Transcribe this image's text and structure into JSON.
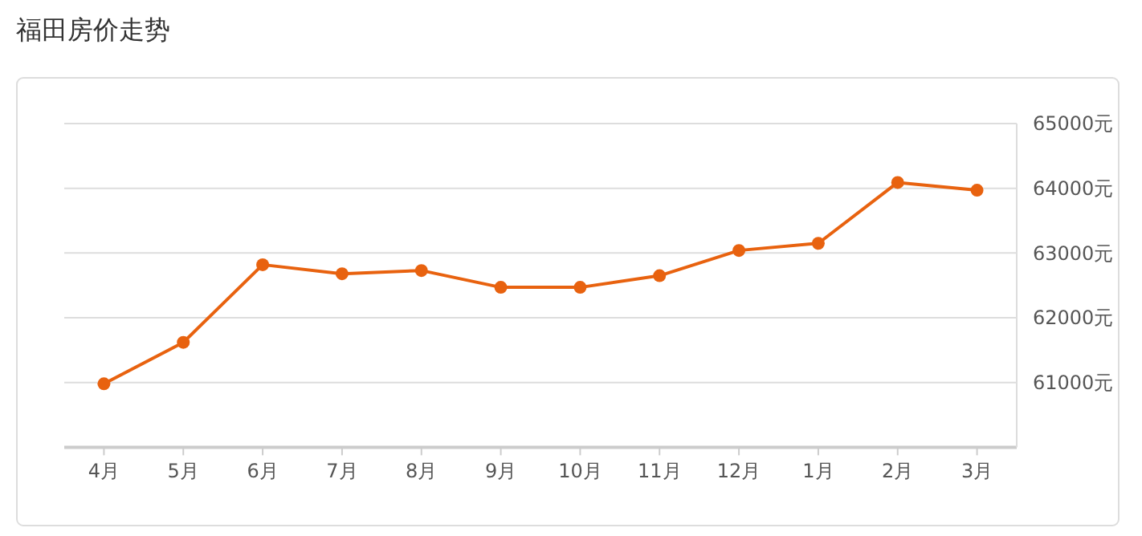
{
  "chart_data": {
    "type": "line",
    "title": "福田房价走势",
    "categories": [
      "4月",
      "5月",
      "6月",
      "7月",
      "8月",
      "9月",
      "10月",
      "11月",
      "12月",
      "1月",
      "2月",
      "3月"
    ],
    "series": [
      {
        "color": "#e8620f",
        "values": [
          60980,
          61620,
          62820,
          62680,
          62730,
          62470,
          62470,
          62650,
          63040,
          63150,
          64090,
          63970
        ]
      }
    ],
    "ylim": [
      60000,
      65000
    ],
    "yticks": [
      {
        "value": 61000,
        "label": "61000元"
      },
      {
        "value": 62000,
        "label": "62000元"
      },
      {
        "value": 63000,
        "label": "63000元"
      },
      {
        "value": 64000,
        "label": "64000元"
      },
      {
        "value": 65000,
        "label": "65000元"
      }
    ],
    "grid": "y",
    "marker": "circle"
  }
}
